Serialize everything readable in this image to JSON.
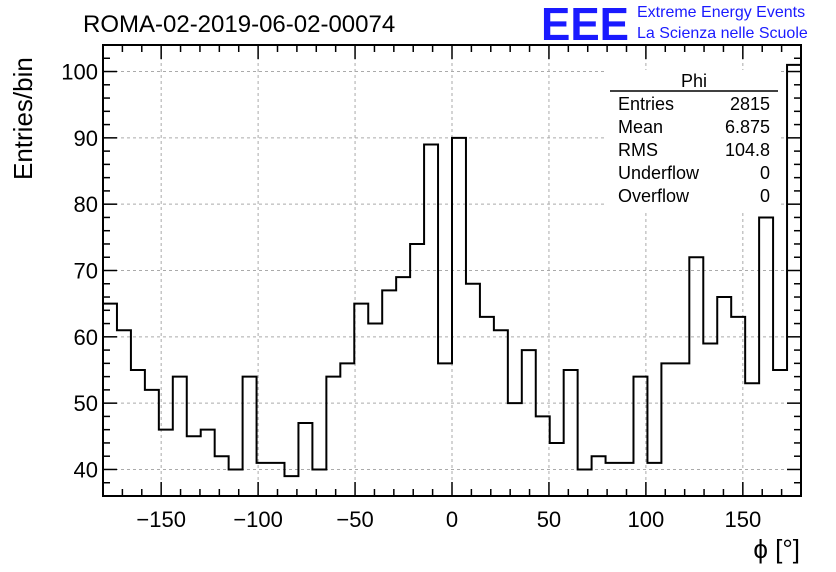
{
  "header": {
    "run_title": "ROMA-02-2019-06-02-00074",
    "logo_mark": "EEE",
    "logo_line1": "Extreme Energy Events",
    "logo_line2": "La Scienza nelle Scuole",
    "brand_color": "#1a1aff"
  },
  "stats": {
    "title": "Phi",
    "rows": [
      {
        "label": "Entries",
        "value": "2815"
      },
      {
        "label": "Mean",
        "value": "6.875"
      },
      {
        "label": "RMS",
        "value": "104.8"
      },
      {
        "label": "Underflow",
        "value": "0"
      },
      {
        "label": "Overflow",
        "value": "0"
      }
    ]
  },
  "chart_data": {
    "type": "histogram",
    "title": "ROMA-02-2019-06-02-00074",
    "xlabel": "ϕ [°]",
    "ylabel": "Entries/bin",
    "xlim": [
      -180,
      180
    ],
    "ylim": [
      36,
      104
    ],
    "grid": true,
    "x_ticks": [
      -150,
      -100,
      -50,
      0,
      50,
      100,
      150
    ],
    "y_ticks": [
      40,
      50,
      60,
      70,
      80,
      90,
      100
    ],
    "bin_width": 7.2,
    "bin_edges_start": -180,
    "values": [
      65,
      61,
      55,
      52,
      46,
      54,
      45,
      46,
      42,
      40,
      54,
      41,
      41,
      39,
      47,
      40,
      54,
      56,
      65,
      62,
      67,
      69,
      74,
      89,
      56,
      90,
      68,
      63,
      61,
      50,
      58,
      48,
      44,
      55,
      40,
      42,
      41,
      41,
      54,
      41,
      56,
      56,
      72,
      59,
      66,
      63,
      53,
      78,
      55,
      101
    ]
  }
}
